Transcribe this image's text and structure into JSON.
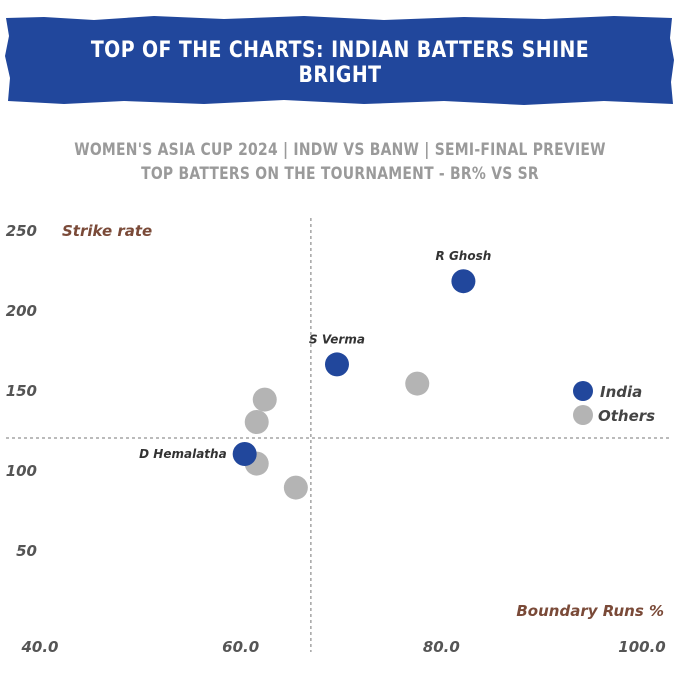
{
  "header": {
    "title": "TOP OF THE CHARTS: INDIAN BATTERS SHINE BRIGHT",
    "subtitle_line1": "WOMEN'S ASIA CUP 2024 | INDW VS BANW | SEMI-FINAL PREVIEW",
    "subtitle_line2": "TOP BATTERS ON THE TOURNAMENT - BR% VS SR"
  },
  "colors": {
    "banner": "#21479c",
    "india": "#21479c",
    "others": "#b4b4b4"
  },
  "chart_data": {
    "type": "scatter",
    "xlabel": "Boundary Runs %",
    "ylabel": "Strike rate",
    "xlim": [
      40,
      100
    ],
    "ylim": [
      20,
      255
    ],
    "x_ticks": [
      40,
      60,
      80,
      100
    ],
    "x_tick_labels": [
      "40.0",
      "60.0",
      "80.0",
      "100.0"
    ],
    "y_ticks": [
      50,
      100,
      150,
      200,
      250
    ],
    "y_tick_labels": [
      "50",
      "100",
      "150",
      "200",
      "250"
    ],
    "reference_lines": {
      "x": 67,
      "y": 120
    },
    "legend": [
      "India",
      "Others"
    ],
    "legend_position": "right",
    "series": [
      {
        "name": "India",
        "points": [
          {
            "x": 82.2,
            "y": 218,
            "label": "R Ghosh"
          },
          {
            "x": 69.6,
            "y": 166,
            "label": "S Verma"
          },
          {
            "x": 60.4,
            "y": 110,
            "label": "D Hemalatha"
          }
        ]
      },
      {
        "name": "Others",
        "points": [
          {
            "x": 77.6,
            "y": 154
          },
          {
            "x": 62.4,
            "y": 144
          },
          {
            "x": 61.6,
            "y": 130
          },
          {
            "x": 61.6,
            "y": 104
          },
          {
            "x": 65.5,
            "y": 89
          }
        ]
      }
    ]
  }
}
